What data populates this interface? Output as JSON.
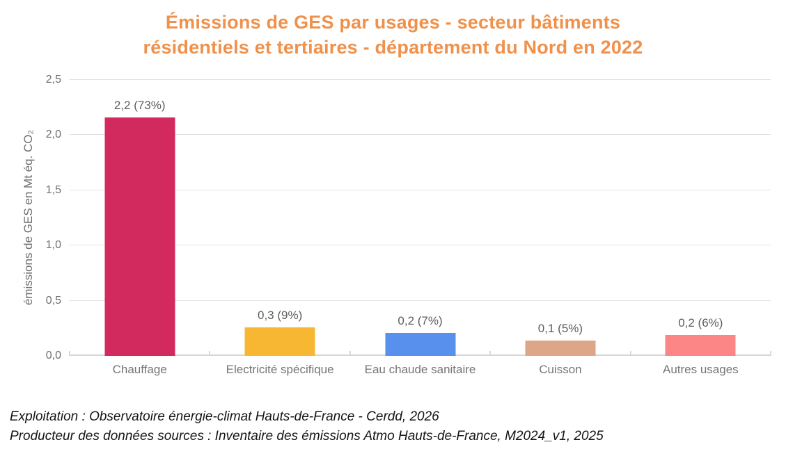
{
  "title": {
    "line1": "Émissions de GES par usages - secteur bâtiments",
    "line2": "résidentiels et tertiaires - département du Nord en 2022",
    "color": "#f0914b"
  },
  "chart_data": {
    "type": "bar",
    "title": "Émissions de GES par usages - secteur bâtiments résidentiels et tertiaires - département du Nord en 2022",
    "categories": [
      "Chauffage",
      "Electricité spécifique",
      "Eau chaude sanitaire",
      "Cuisson",
      "Autres usages"
    ],
    "values": [
      2.16,
      0.26,
      0.21,
      0.14,
      0.19
    ],
    "bar_labels": [
      "2,2 (73%)",
      "0,3 (9%)",
      "0,2 (7%)",
      "0,1 (5%)",
      "0,2 (6%)"
    ],
    "colors": [
      "#d22a5e",
      "#f7b733",
      "#5890ee",
      "#dda687",
      "#fc8585"
    ],
    "xlabel": "",
    "ylabel": "émissions de GES en Mt éq. CO₂",
    "ylim": [
      0,
      2.5
    ],
    "yticks": [
      {
        "value": 0,
        "label": "0,0"
      },
      {
        "value": 0.5,
        "label": "0,5"
      },
      {
        "value": 1,
        "label": "1,0"
      },
      {
        "value": 1.5,
        "label": "1,5"
      },
      {
        "value": 2,
        "label": "2,0"
      },
      {
        "value": 2.5,
        "label": "2,5"
      }
    ],
    "grid": true,
    "legend": false,
    "unit": "Mt éq. CO₂"
  },
  "footer": {
    "line1": "Exploitation : Observatoire énergie-climat Hauts-de-France - Cerdd, 2026",
    "line2": "Producteur des données sources : Inventaire des émissions Atmo Hauts-de-France, M2024_v1, 2025"
  }
}
